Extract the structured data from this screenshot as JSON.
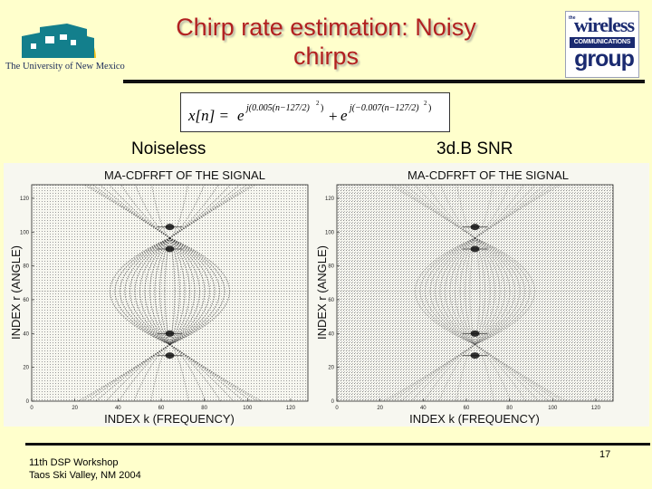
{
  "header": {
    "title_line1": "Chirp rate estimation: Noisy",
    "title_line2": "chirps",
    "title_color": "#b22020",
    "left_logo": {
      "icon": "unm-logo",
      "text": "The University of New Mexico",
      "colors": {
        "sun": "#f2c21b",
        "building": "#137f8c",
        "text": "#1a2a5a"
      }
    },
    "right_logo": {
      "icon": "wireless-group-logo",
      "small_text": "the",
      "word1": "wireless",
      "band": "COMMUNICATIONS",
      "word2": "group",
      "color": "#1a2a70"
    }
  },
  "equation": {
    "lhs": "x[n] = ",
    "term1_base": "e",
    "term1_exp": "j(0.005(n−127/2)",
    "term1_sq": "2",
    "term1_close": ")",
    "plus": "+",
    "term2_base": "e",
    "term2_exp": "j(−0.007(n−127/2)",
    "term2_sq": "2",
    "term2_close": ")"
  },
  "labels": {
    "left": "Noiseless",
    "right": "3d.B SNR"
  },
  "plots": [
    {
      "title": "MA-CDFRFT OF THE SIGNAL",
      "xlabel": "INDEX k (FREQUENCY)",
      "ylabel": "INDEX r (ANGLE)",
      "xticks": [
        "0",
        "20",
        "40",
        "60",
        "80",
        "100",
        "120"
      ],
      "yticks": [
        "0",
        "20",
        "40",
        "60",
        "80",
        "100",
        "120"
      ],
      "peaks_r": [
        27,
        40,
        90,
        103
      ],
      "peak_k": 64
    },
    {
      "title": "MA-CDFRFT OF THE SIGNAL",
      "xlabel": "INDEX k (FREQUENCY)",
      "ylabel": "INDEX r (ANGLE)",
      "xticks": [
        "0",
        "20",
        "40",
        "60",
        "80",
        "100",
        "120"
      ],
      "yticks": [
        "0",
        "20",
        "40",
        "60",
        "80",
        "100",
        "120"
      ],
      "peaks_r": [
        27,
        40,
        90,
        103
      ],
      "peak_k": 64
    }
  ],
  "footer": {
    "line1": "11th DSP Workshop",
    "line2": "Taos Ski Valley, NM 2004",
    "page": "17"
  }
}
